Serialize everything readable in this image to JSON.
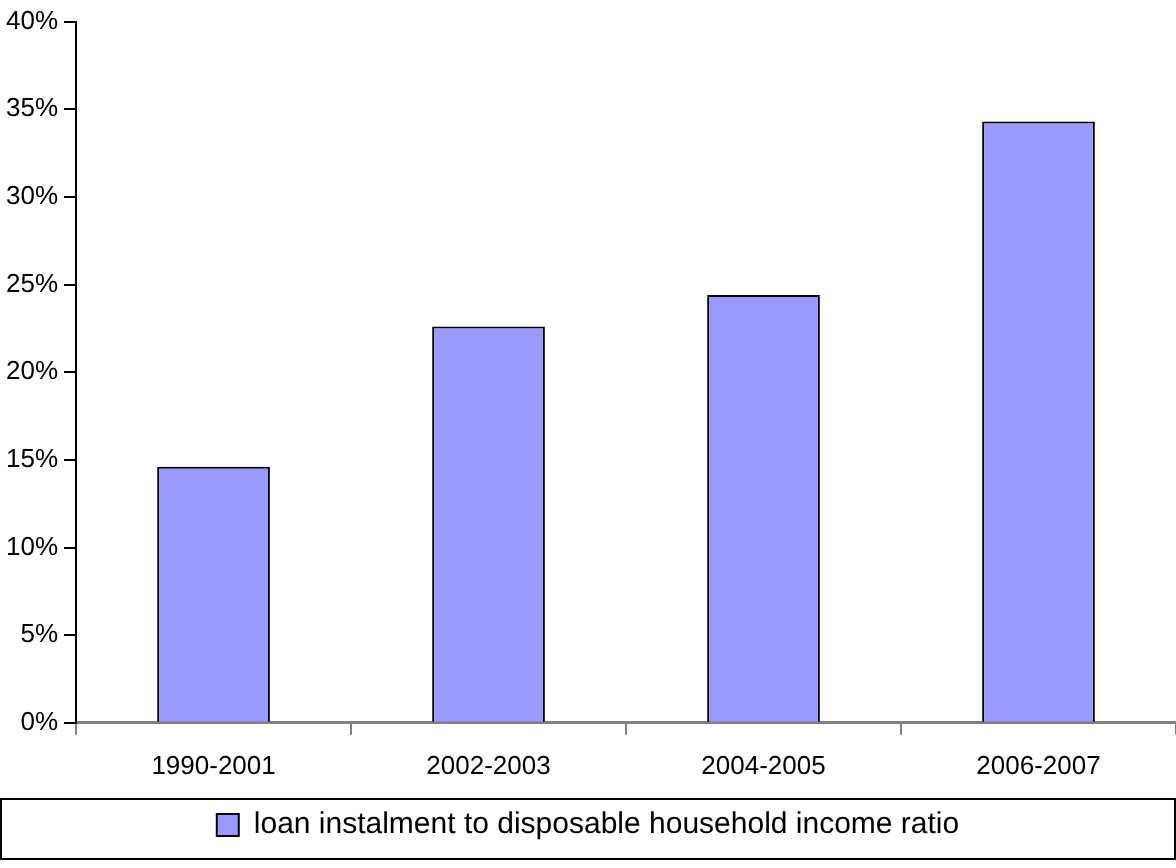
{
  "chart_data": {
    "type": "bar",
    "categories": [
      "1990-2001",
      "2002-2003",
      "2004-2005",
      "2006-2007"
    ],
    "series": [
      {
        "name": "loan instalment to disposable household income ratio",
        "color": "#9999ff",
        "values": [
          14.6,
          22.6,
          24.4,
          34.3
        ]
      }
    ],
    "ylim": [
      0,
      40
    ],
    "yticks": [
      {
        "value": 0,
        "label": "0%"
      },
      {
        "value": 5,
        "label": "5%"
      },
      {
        "value": 10,
        "label": "10%"
      },
      {
        "value": 15,
        "label": "15%"
      },
      {
        "value": 20,
        "label": "20%"
      },
      {
        "value": 25,
        "label": "25%"
      },
      {
        "value": 30,
        "label": "30%"
      },
      {
        "value": 35,
        "label": "35%"
      },
      {
        "value": 40,
        "label": "40%"
      }
    ],
    "grid": false,
    "legend": "bottom"
  }
}
